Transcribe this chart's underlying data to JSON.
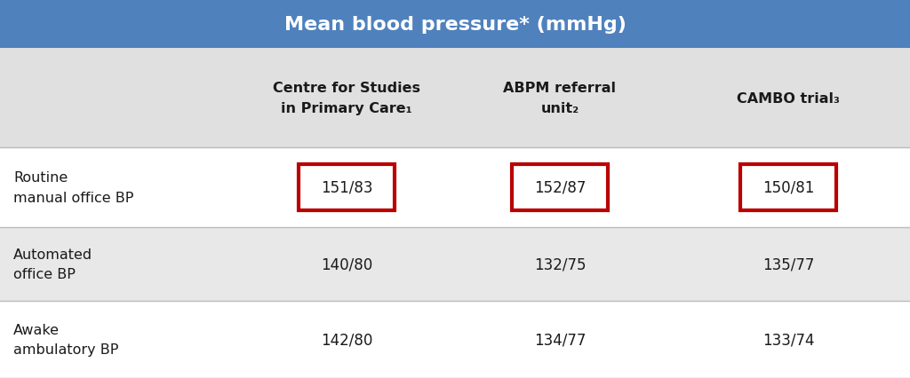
{
  "title": "Mean blood pressure* (mmHg)",
  "title_bg": "#4f81bd",
  "title_color": "#ffffff",
  "header_bg": "#e0e0e0",
  "row_bg_1": "#ffffff",
  "row_bg_2": "#e8e8e8",
  "row_bg_3": "#ffffff",
  "text_color": "#1a1a1a",
  "columns": [
    "Centre for Studies\nin Primary Care",
    "ABPM referral\nunit",
    "CAMBO trial"
  ],
  "col_subscripts": [
    "₁",
    "₂",
    "₃"
  ],
  "rows": [
    {
      "label": "Routine\nmanual office BP",
      "values": [
        "151/83",
        "152/87",
        "150/81"
      ],
      "highlight": true
    },
    {
      "label": "Automated\noffice BP",
      "values": [
        "140/80",
        "132/75",
        "135/77"
      ],
      "highlight": false
    },
    {
      "label": "Awake\nambulatory BP",
      "values": [
        "142/80",
        "134/77",
        "133/74"
      ],
      "highlight": false
    }
  ],
  "highlight_border_color": "#bb0000",
  "separator_color": "#bbbbbb",
  "figsize": [
    10.24,
    4.27
  ],
  "dpi": 100
}
